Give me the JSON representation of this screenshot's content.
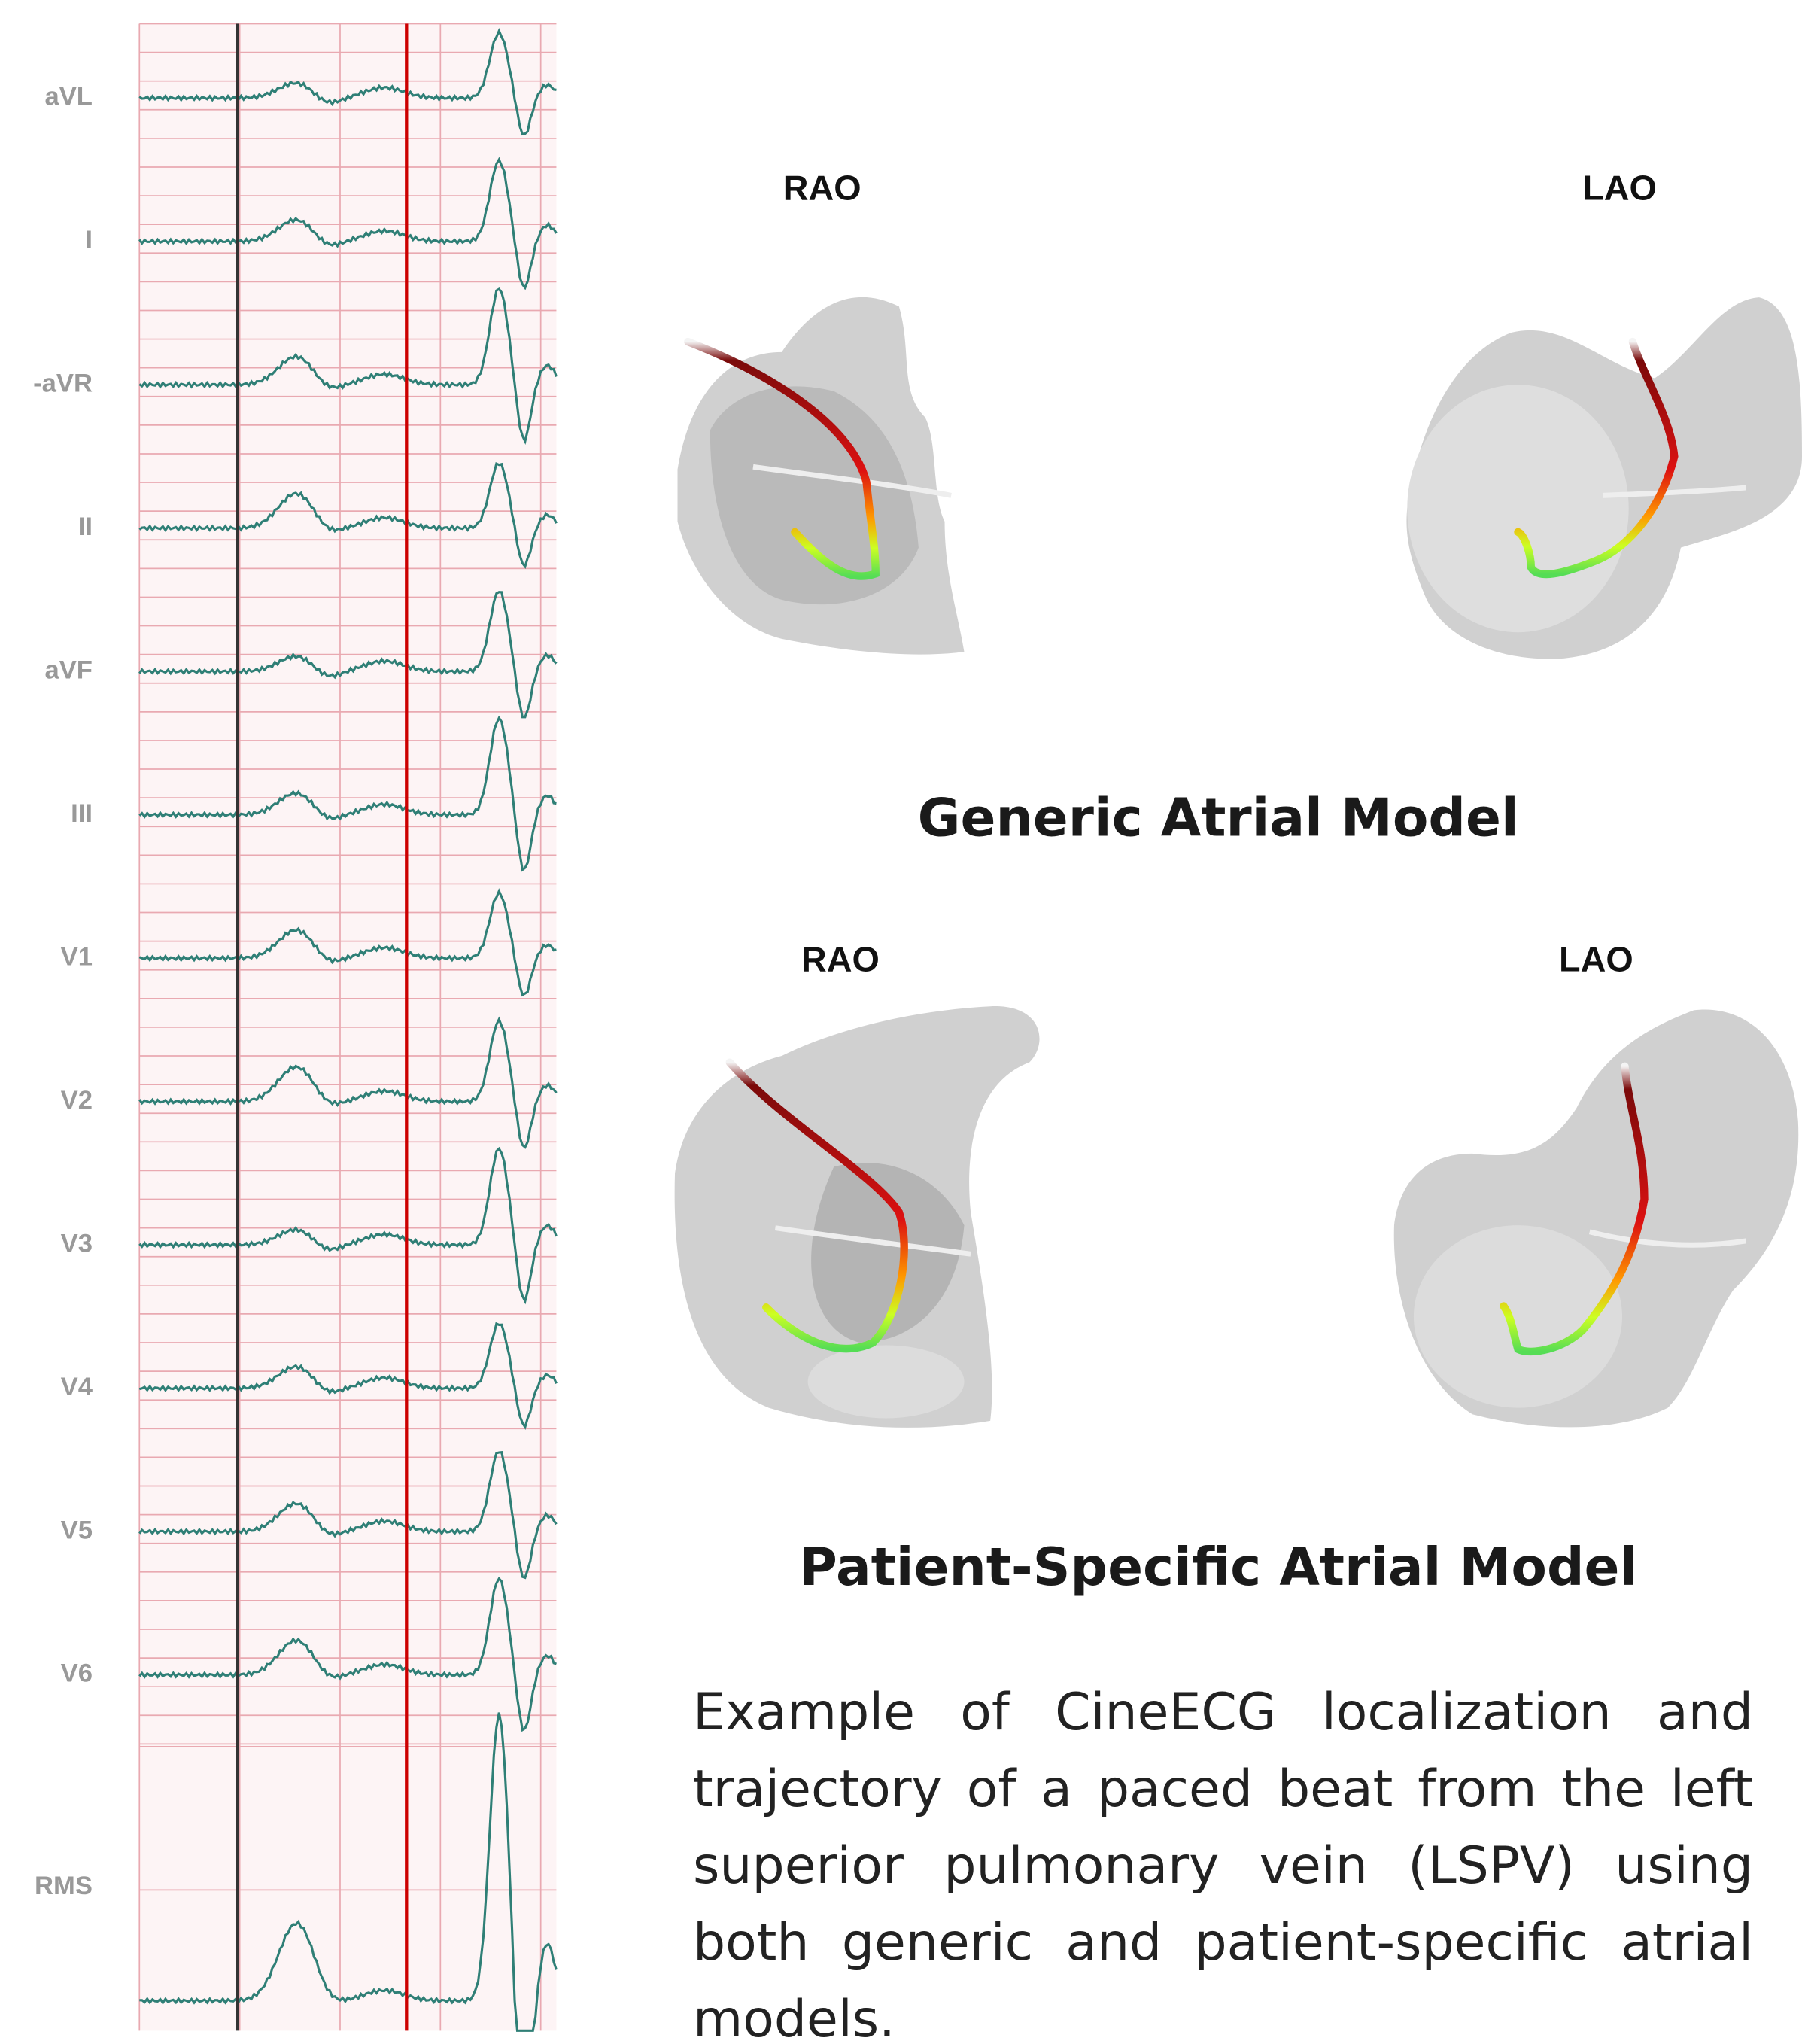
{
  "ecg": {
    "leads": [
      "aVL",
      "I",
      "-aVR",
      "II",
      "aVF",
      "III",
      "V1",
      "V2",
      "V3",
      "V4",
      "V5",
      "V6",
      "RMS"
    ]
  },
  "generic_model": {
    "title": "Generic Atrial Model",
    "views": [
      "RAO",
      "LAO"
    ]
  },
  "patient_model": {
    "title": "Patient-Specific Atrial Model",
    "views": [
      "RAO",
      "LAO"
    ]
  },
  "caption": "Example of CineECG localization and trajectory of a paced beat from the left superior pulmonary vein (LSPV) using both generic and patient-specific atrial models."
}
